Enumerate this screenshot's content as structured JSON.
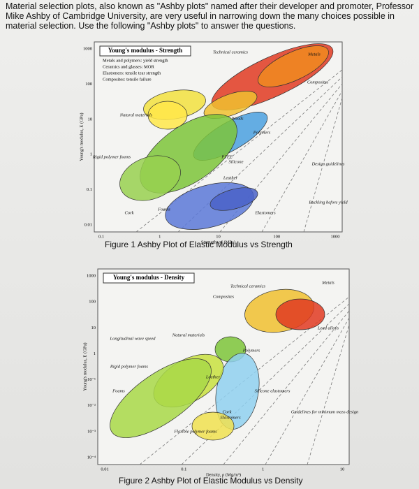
{
  "paragraph": "Material selection plots, also known as \"Ashby plots\" named after their developer and promoter, Professor Mike Ashby of Cambridge University, are very useful in narrowing down the many choices possible in material selection. Use the following \"Ashby plots\" to answer the questions.",
  "figures": [
    {
      "caption": "Figure 1 Ashby Plot of Elastic Modulus vs Strength",
      "title": "Young's modulus - Strength",
      "key": [
        "Metals and polymers: yield strength",
        "Ceramics and glasses: MOR",
        "Elastomers: tensile tear strength",
        "Composites: tensile failure"
      ],
      "x_label": "Strength, σf (MPa)",
      "y_label": "Young's modulus, E (GPa)",
      "x_ticks": [
        "0.1",
        "1",
        "10",
        "100",
        "1000"
      ],
      "y_ticks": [
        "1000",
        "100",
        "10",
        "1",
        "0.1",
        "0.01"
      ],
      "regions": [
        "Technical ceramics",
        "Metals",
        "Composites",
        "Woods",
        "Polymers",
        "Foams",
        "Elastomers",
        "Natural materials",
        "Rigid polymer foams",
        "Cork",
        "Leather",
        "Silicone",
        "PTFE",
        "Design guidelines",
        "Buckling before yield"
      ]
    },
    {
      "caption": "Figure 2 Ashby Plot of Elastic Modulus vs Density",
      "title": "Young's modulus - Density",
      "key": [],
      "x_label": "Density, ρ (Mg/m³)",
      "y_label": "Young's modulus, E (GPa)",
      "x_ticks": [
        "0.01",
        "0.1",
        "1",
        "10"
      ],
      "y_ticks": [
        "1000",
        "100",
        "10",
        "1",
        "10⁻¹",
        "10⁻²",
        "10⁻³",
        "10⁻⁴"
      ],
      "regions": [
        "Technical ceramics",
        "Metals",
        "Composites",
        "Natural materials",
        "Polymers",
        "Foams",
        "Elastomers",
        "Rigid polymer foams",
        "Flexible polymer foams",
        "Cork",
        "Leather",
        "Silicone elastomers",
        "Longitudinal wave speed",
        "Guidelines for minimum mass design",
        "Lead alloys"
      ]
    }
  ]
}
